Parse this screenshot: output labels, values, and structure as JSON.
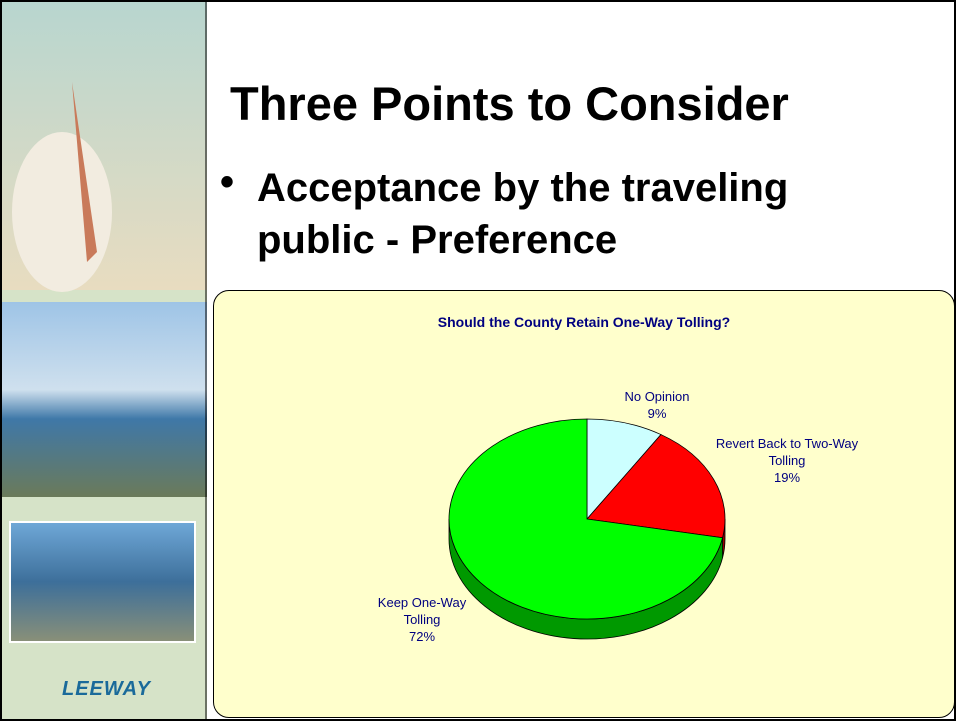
{
  "title": "Three Points to Consider",
  "bullet": "Acceptance by the traveling public - Preference",
  "logo": "LEEWAY",
  "chart_data": {
    "type": "pie",
    "title": "Should the County Retain One-Way Tolling?",
    "categories": [
      "No Opinion",
      "Revert Back to Two-Way Tolling",
      "Keep One-Way Tolling"
    ],
    "values": [
      9,
      19,
      72
    ],
    "value_labels": [
      "9%",
      "19%",
      "72%"
    ],
    "colors": [
      "#ccffff",
      "#ff0000",
      "#00ff00"
    ]
  }
}
